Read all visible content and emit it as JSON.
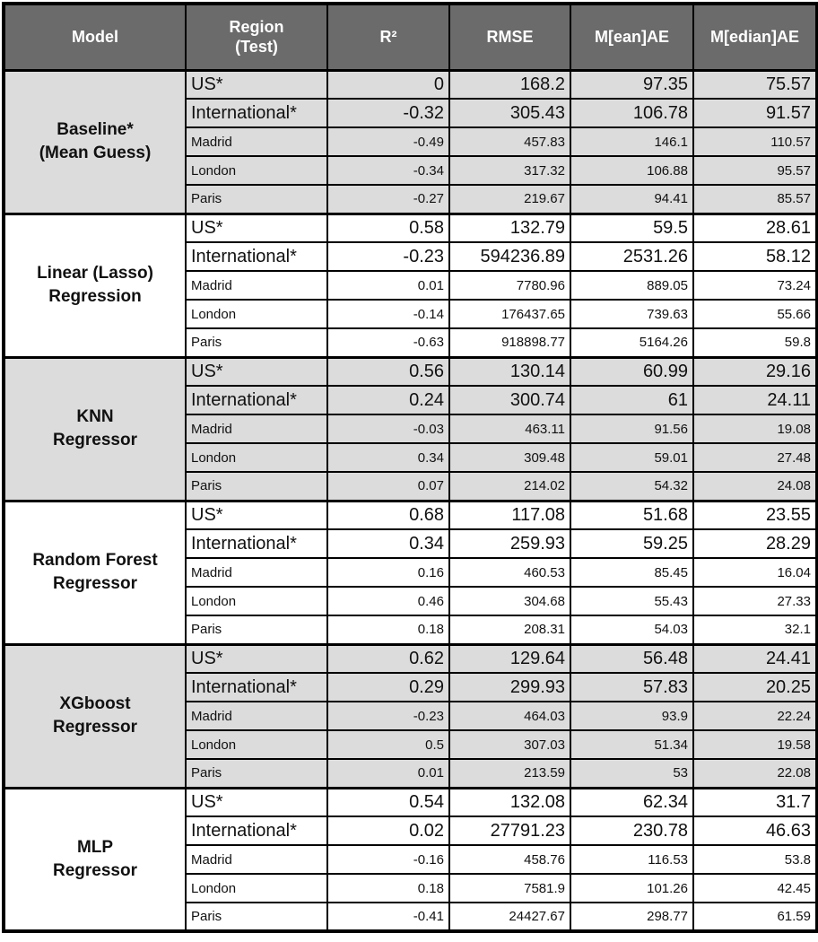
{
  "styles": {
    "header_bg": "#6b6b6b",
    "header_text": "#ffffff",
    "shaded_bg": "#dcdcdc",
    "plain_bg": "#ffffff",
    "border_color": "#000000"
  },
  "chart_data": {
    "type": "table",
    "columns": [
      "Model",
      "Region\n(Test)",
      "R²",
      "RMSE",
      "M[ean]AE",
      "M[edian]AE"
    ],
    "sections": [
      {
        "model": "Baseline*\n(Mean Guess)",
        "shaded": true,
        "rows": [
          {
            "region": "US*",
            "emphasis": true,
            "r2": "0",
            "rmse": "168.2",
            "mean_ae": "97.35",
            "median_ae": "75.57"
          },
          {
            "region": "International*",
            "emphasis": true,
            "r2": "-0.32",
            "rmse": "305.43",
            "mean_ae": "106.78",
            "median_ae": "91.57"
          },
          {
            "region": "Madrid",
            "emphasis": false,
            "r2": "-0.49",
            "rmse": "457.83",
            "mean_ae": "146.1",
            "median_ae": "110.57"
          },
          {
            "region": "London",
            "emphasis": false,
            "r2": "-0.34",
            "rmse": "317.32",
            "mean_ae": "106.88",
            "median_ae": "95.57"
          },
          {
            "region": "Paris",
            "emphasis": false,
            "r2": "-0.27",
            "rmse": "219.67",
            "mean_ae": "94.41",
            "median_ae": "85.57"
          }
        ]
      },
      {
        "model": "Linear (Lasso)\nRegression",
        "shaded": false,
        "rows": [
          {
            "region": "US*",
            "emphasis": true,
            "r2": "0.58",
            "rmse": "132.79",
            "mean_ae": "59.5",
            "median_ae": "28.61"
          },
          {
            "region": "International*",
            "emphasis": true,
            "r2": "-0.23",
            "rmse": "594236.89",
            "mean_ae": "2531.26",
            "median_ae": "58.12"
          },
          {
            "region": "Madrid",
            "emphasis": false,
            "r2": "0.01",
            "rmse": "7780.96",
            "mean_ae": "889.05",
            "median_ae": "73.24"
          },
          {
            "region": "London",
            "emphasis": false,
            "r2": "-0.14",
            "rmse": "176437.65",
            "mean_ae": "739.63",
            "median_ae": "55.66"
          },
          {
            "region": "Paris",
            "emphasis": false,
            "r2": "-0.63",
            "rmse": "918898.77",
            "mean_ae": "5164.26",
            "median_ae": "59.8"
          }
        ]
      },
      {
        "model": "KNN\nRegressor",
        "shaded": true,
        "rows": [
          {
            "region": "US*",
            "emphasis": true,
            "r2": "0.56",
            "rmse": "130.14",
            "mean_ae": "60.99",
            "median_ae": "29.16"
          },
          {
            "region": "International*",
            "emphasis": true,
            "r2": "0.24",
            "rmse": "300.74",
            "mean_ae": "61",
            "median_ae": "24.11"
          },
          {
            "region": "Madrid",
            "emphasis": false,
            "r2": "-0.03",
            "rmse": "463.11",
            "mean_ae": "91.56",
            "median_ae": "19.08"
          },
          {
            "region": "London",
            "emphasis": false,
            "r2": "0.34",
            "rmse": "309.48",
            "mean_ae": "59.01",
            "median_ae": "27.48"
          },
          {
            "region": "Paris",
            "emphasis": false,
            "r2": "0.07",
            "rmse": "214.02",
            "mean_ae": "54.32",
            "median_ae": "24.08"
          }
        ]
      },
      {
        "model": "Random Forest\nRegressor",
        "shaded": false,
        "rows": [
          {
            "region": "US*",
            "emphasis": true,
            "r2": "0.68",
            "rmse": "117.08",
            "mean_ae": "51.68",
            "median_ae": "23.55"
          },
          {
            "region": "International*",
            "emphasis": true,
            "r2": "0.34",
            "rmse": "259.93",
            "mean_ae": "59.25",
            "median_ae": "28.29"
          },
          {
            "region": "Madrid",
            "emphasis": false,
            "r2": "0.16",
            "rmse": "460.53",
            "mean_ae": "85.45",
            "median_ae": "16.04"
          },
          {
            "region": "London",
            "emphasis": false,
            "r2": "0.46",
            "rmse": "304.68",
            "mean_ae": "55.43",
            "median_ae": "27.33"
          },
          {
            "region": "Paris",
            "emphasis": false,
            "r2": "0.18",
            "rmse": "208.31",
            "mean_ae": "54.03",
            "median_ae": "32.1"
          }
        ]
      },
      {
        "model": "XGboost\nRegressor",
        "shaded": true,
        "rows": [
          {
            "region": "US*",
            "emphasis": true,
            "r2": "0.62",
            "rmse": "129.64",
            "mean_ae": "56.48",
            "median_ae": "24.41"
          },
          {
            "region": "International*",
            "emphasis": true,
            "r2": "0.29",
            "rmse": "299.93",
            "mean_ae": "57.83",
            "median_ae": "20.25"
          },
          {
            "region": "Madrid",
            "emphasis": false,
            "r2": "-0.23",
            "rmse": "464.03",
            "mean_ae": "93.9",
            "median_ae": "22.24"
          },
          {
            "region": "London",
            "emphasis": false,
            "r2": "0.5",
            "rmse": "307.03",
            "mean_ae": "51.34",
            "median_ae": "19.58"
          },
          {
            "region": "Paris",
            "emphasis": false,
            "r2": "0.01",
            "rmse": "213.59",
            "mean_ae": "53",
            "median_ae": "22.08"
          }
        ]
      },
      {
        "model": "MLP\nRegressor",
        "shaded": false,
        "rows": [
          {
            "region": "US*",
            "emphasis": true,
            "r2": "0.54",
            "rmse": "132.08",
            "mean_ae": "62.34",
            "median_ae": "31.7"
          },
          {
            "region": "International*",
            "emphasis": true,
            "r2": "0.02",
            "rmse": "27791.23",
            "mean_ae": "230.78",
            "median_ae": "46.63"
          },
          {
            "region": "Madrid",
            "emphasis": false,
            "r2": "-0.16",
            "rmse": "458.76",
            "mean_ae": "116.53",
            "median_ae": "53.8"
          },
          {
            "region": "London",
            "emphasis": false,
            "r2": "0.18",
            "rmse": "7581.9",
            "mean_ae": "101.26",
            "median_ae": "42.45"
          },
          {
            "region": "Paris",
            "emphasis": false,
            "r2": "-0.41",
            "rmse": "24427.67",
            "mean_ae": "298.77",
            "median_ae": "61.59"
          }
        ]
      }
    ]
  }
}
